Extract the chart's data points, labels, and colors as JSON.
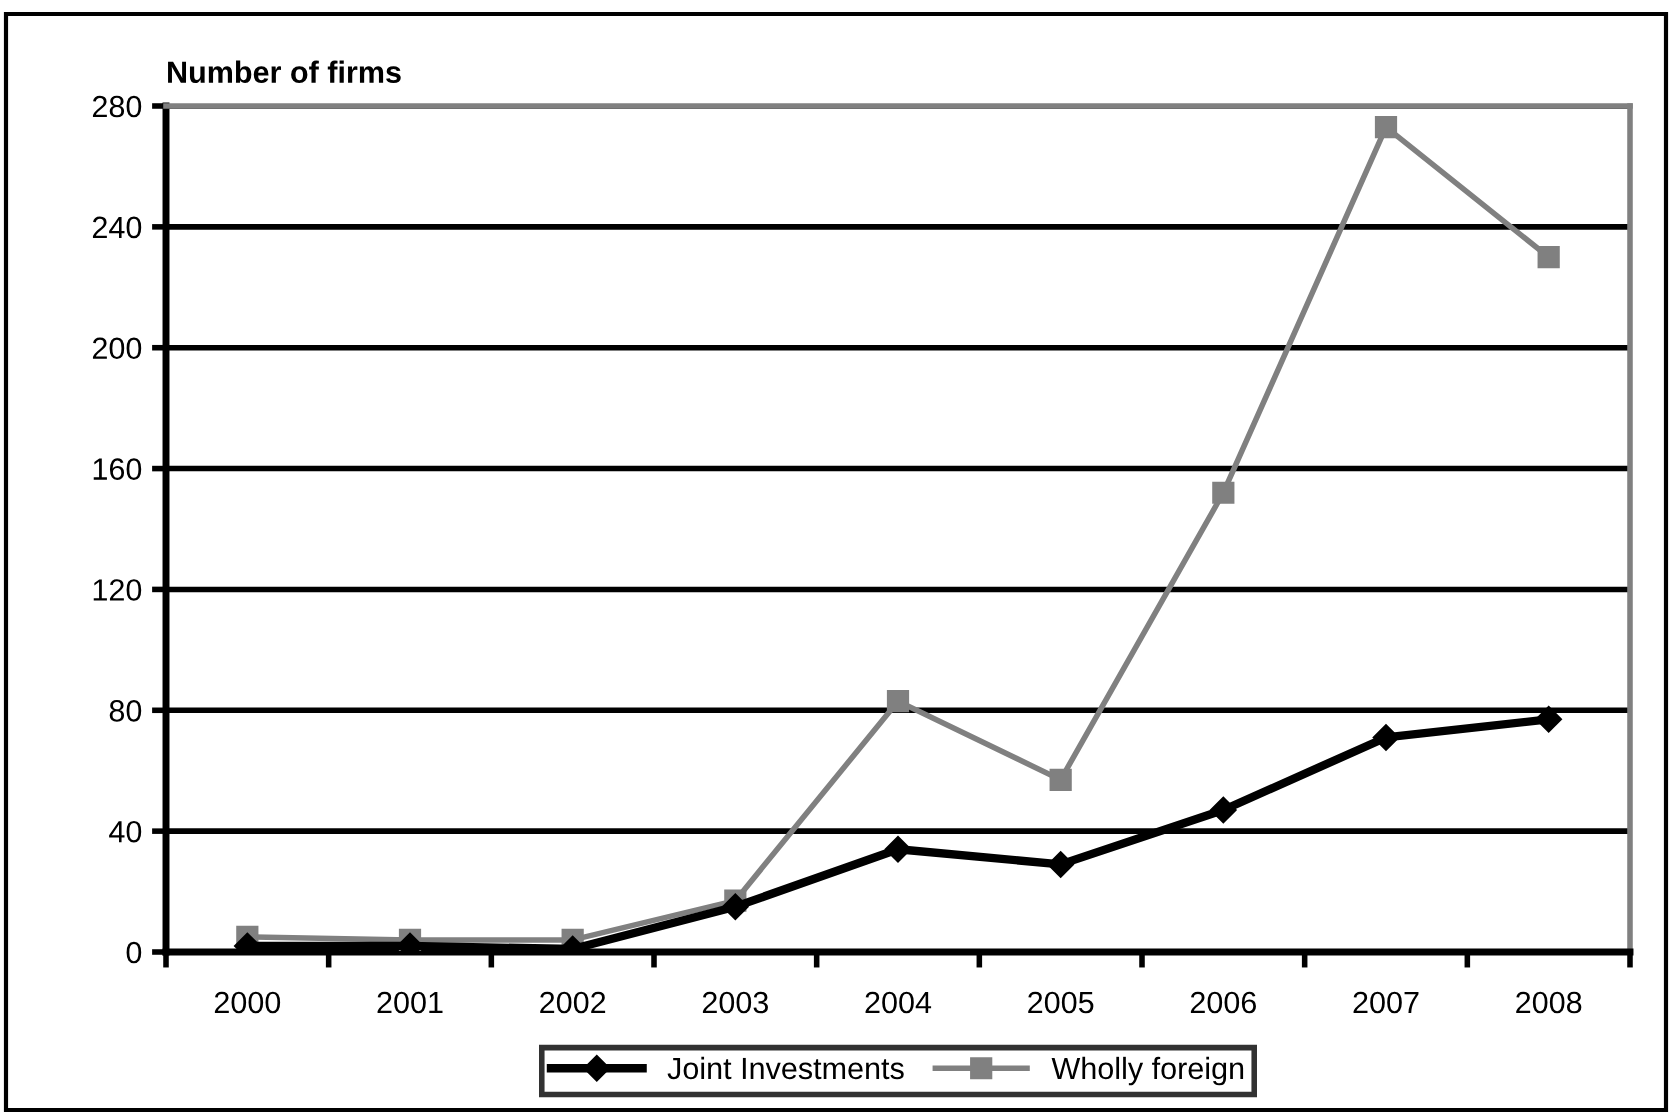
{
  "chart_data": {
    "type": "line",
    "ylabel": "Number of firms",
    "categories": [
      "2000",
      "2001",
      "2002",
      "2003",
      "2004",
      "2005",
      "2006",
      "2007",
      "2008"
    ],
    "series": [
      {
        "name": "Joint Investments",
        "color": "#000000",
        "marker": "diamond",
        "values": [
          2,
          2,
          1,
          15,
          34,
          29,
          47,
          71,
          77
        ]
      },
      {
        "name": "Wholly foreign",
        "color": "#808080",
        "marker": "square",
        "values": [
          5,
          4,
          4,
          17,
          83,
          57,
          152,
          273,
          230
        ]
      }
    ],
    "ylim": [
      0,
      280
    ],
    "yticks": [
      0,
      40,
      80,
      120,
      160,
      200,
      240,
      280
    ],
    "grid": "y",
    "legend": "bottom"
  }
}
